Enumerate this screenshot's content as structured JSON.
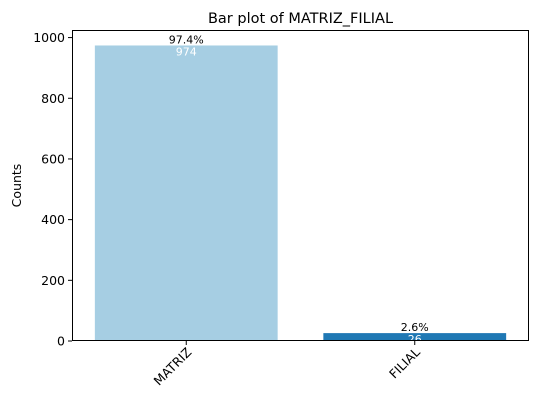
{
  "chart_data": {
    "type": "bar",
    "title": "Bar plot of MATRIZ_FILIAL",
    "xlabel": "",
    "ylabel": "Counts",
    "categories": [
      "MATRIZ",
      "FILIAL"
    ],
    "values": [
      974,
      26
    ],
    "percent_labels": [
      "97.4%",
      "2.6%"
    ],
    "count_labels": [
      "974",
      "26"
    ],
    "bar_colors": [
      "#a6cee3",
      "#1f78b4"
    ],
    "ylim": [
      0,
      1025
    ],
    "yticks": [
      0,
      200,
      400,
      600,
      800,
      1000
    ],
    "ytick_labels": [
      "0",
      "200",
      "400",
      "600",
      "800",
      "1000"
    ],
    "xtick_rotation_deg": 45,
    "grid": false,
    "legend": "none"
  }
}
